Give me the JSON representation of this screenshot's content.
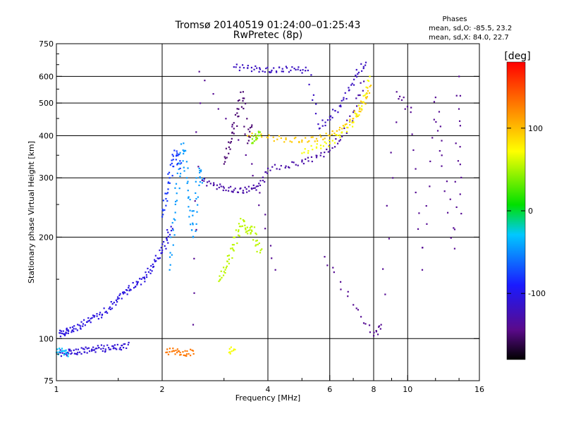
{
  "chart_data": {
    "type": "scatter",
    "title": "Tromsø 20140519 01:24:00–01:25:43",
    "subtitle": "RwPretec (8p)",
    "xlabel": "Frequency [MHz]",
    "ylabel": "Stationary phase Virtual Height [km]",
    "x_scale": "log",
    "y_scale": "log",
    "xlim": [
      1,
      16
    ],
    "ylim": [
      75,
      750
    ],
    "x_ticks": [
      1,
      2,
      4,
      6,
      8,
      10,
      16
    ],
    "x_tick_labels": [
      "1",
      "2",
      "4",
      "6",
      "8",
      "10",
      "16"
    ],
    "x_minor_ticks": [
      1.5,
      3,
      5,
      7,
      9,
      12,
      14
    ],
    "y_ticks": [
      75,
      100,
      200,
      300,
      400,
      500,
      600,
      750
    ],
    "y_tick_labels": [
      "75",
      "100",
      "200",
      "300",
      "400",
      "500",
      "600",
      "750"
    ],
    "y_minor_ticks": [
      90,
      150,
      250,
      350,
      450,
      550,
      650,
      700
    ],
    "grid": true,
    "colorbar": {
      "label": "[deg]",
      "range": [
        -180,
        180
      ],
      "ticks": [
        100,
        0,
        -100
      ],
      "tick_labels": [
        "100",
        "0",
        "-100"
      ],
      "colors": [
        "#000000",
        "#5a0a8a",
        "#1a1aff",
        "#00c8ff",
        "#00e000",
        "#ffff00",
        "#ff8000",
        "#ff0000"
      ]
    },
    "phases": {
      "header": "Phases",
      "o_line": "mean, sd,O:  -85.5, 23.2",
      "x_line": "mean, sd,X:  84.0, 22.7"
    },
    "series": [
      {
        "x": [
          1.02,
          1.05,
          1.08,
          1.12,
          1.17,
          1.22,
          1.28,
          1.35,
          1.42,
          1.48,
          1.55,
          1.62,
          1.7,
          1.78,
          1.85,
          1.92,
          2.0,
          2.06,
          2.12
        ],
        "y": [
          104,
          103,
          106,
          107,
          109,
          112,
          116,
          118,
          124,
          130,
          136,
          140,
          146,
          152,
          160,
          170,
          183,
          198,
          215
        ],
        "phase": -105
      },
      {
        "x": [
          1.02,
          1.06,
          1.1,
          1.15,
          1.2,
          1.26,
          1.32,
          1.38,
          1.45,
          1.52,
          1.6
        ],
        "y": [
          91,
          90,
          92,
          91,
          93,
          92,
          94,
          93,
          95,
          94,
          96
        ],
        "phase": -110
      },
      {
        "x": [
          1.0,
          1.04,
          1.08
        ],
        "y": [
          91,
          92,
          90
        ],
        "phase": -30
      },
      {
        "x": [
          2.1,
          2.15,
          2.2,
          2.25,
          2.3,
          2.35,
          2.4,
          2.45,
          2.5,
          2.55,
          2.6
        ],
        "y": [
          160,
          210,
          270,
          330,
          380,
          300,
          240,
          200,
          260,
          320,
          290
        ],
        "phase": -45
      },
      {
        "x": [
          2.0,
          2.05,
          2.1,
          2.15,
          2.2,
          2.25
        ],
        "y": [
          230,
          260,
          300,
          340,
          360,
          320
        ],
        "phase": -80
      },
      {
        "x": [
          2.6,
          2.8,
          3.0,
          3.2,
          3.4,
          3.6,
          3.8,
          4.0,
          4.5,
          5.0,
          5.5,
          6.0,
          6.5,
          7.0,
          7.5
        ],
        "y": [
          295,
          285,
          280,
          276,
          275,
          278,
          285,
          320,
          325,
          335,
          345,
          362,
          398,
          470,
          580
        ],
        "phase": -130
      },
      {
        "x": [
          3.2,
          3.5,
          3.8,
          4.1,
          4.4,
          4.8,
          5.2,
          5.6,
          6.0,
          6.4,
          6.8,
          7.2,
          7.6
        ],
        "y": [
          640,
          635,
          630,
          625,
          632,
          628,
          625,
          420,
          455,
          490,
          545,
          610,
          660
        ],
        "phase": -118
      },
      {
        "x": [
          3.0,
          3.1,
          3.2,
          3.3,
          3.4,
          3.5,
          3.6
        ],
        "y": [
          330,
          370,
          420,
          480,
          540,
          380,
          430
        ],
        "phase": -150
      },
      {
        "x": [
          3.5,
          4.0,
          4.5,
          5.0,
          5.5,
          6.0,
          6.5,
          7.0,
          7.3,
          7.6,
          7.8
        ],
        "y": [
          400,
          395,
          390,
          388,
          392,
          400,
          420,
          450,
          480,
          520,
          560
        ],
        "phase": 95
      },
      {
        "x": [
          5.0,
          5.5,
          6.0,
          6.5,
          7.0,
          7.4,
          7.8
        ],
        "y": [
          355,
          370,
          380,
          410,
          440,
          490,
          600
        ],
        "phase": 70
      },
      {
        "x": [
          2.9,
          3.0,
          3.1,
          3.2,
          3.3,
          3.4,
          3.5,
          3.6,
          3.7,
          3.8
        ],
        "y": [
          148,
          158,
          172,
          190,
          210,
          225,
          205,
          215,
          195,
          180
        ],
        "phase": 55
      },
      {
        "x": [
          3.6,
          3.7,
          3.8
        ],
        "y": [
          380,
          395,
          410
        ],
        "phase": 40
      },
      {
        "x": [
          2.05,
          2.15,
          2.25,
          2.35,
          2.45
        ],
        "y": [
          91,
          92,
          91,
          90,
          92
        ],
        "phase": 130
      },
      {
        "x": [
          3.1,
          3.2
        ],
        "y": [
          91,
          93
        ],
        "phase": 70
      },
      {
        "x": [
          2.45,
          2.55,
          3.6,
          4.2,
          5.8,
          7.0,
          8.0,
          8.4,
          9.3,
          10.2,
          11.0,
          12.0,
          12.5,
          13.6,
          14.0,
          14.2
        ],
        "y": [
          110,
          620,
          330,
          160,
          175,
          126,
          102,
          110,
          540,
          470,
          160,
          520,
          350,
          185,
          600,
          235
        ],
        "phase": -140
      }
    ]
  }
}
